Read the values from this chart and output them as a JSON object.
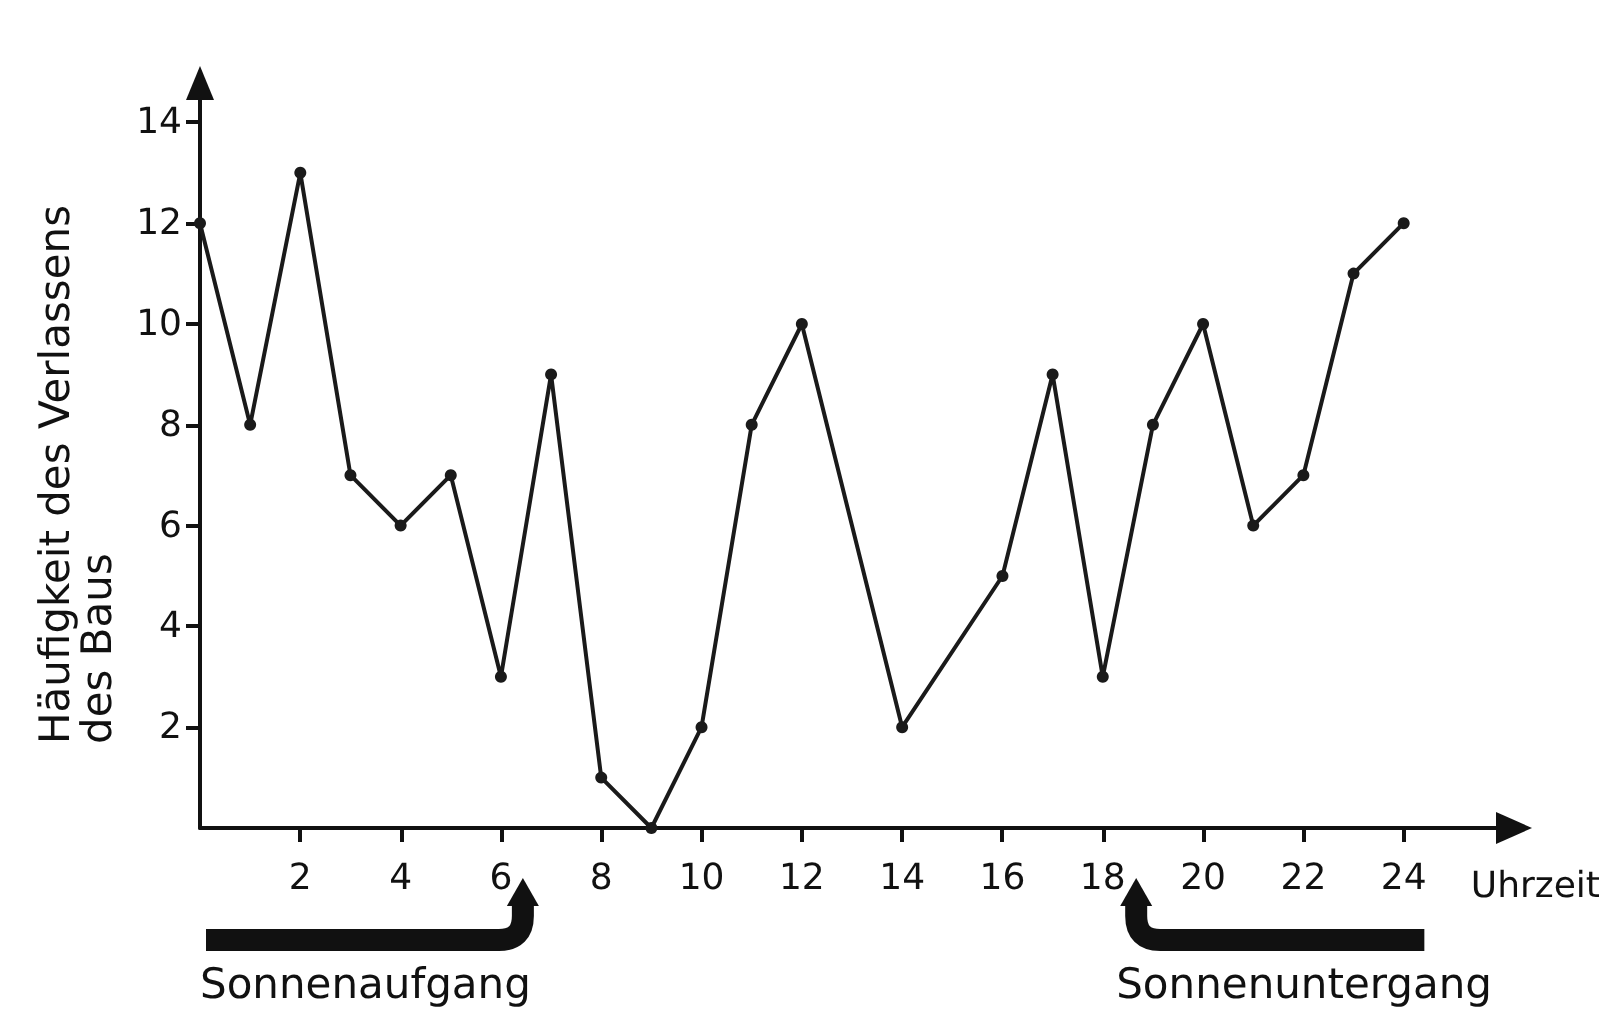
{
  "chart_data": {
    "type": "line",
    "xlabel": "Uhrzeit",
    "ylabel": "Häufigkeit des Verlassens des Baus",
    "x": [
      0,
      1,
      2,
      3,
      4,
      5,
      6,
      7,
      8,
      9,
      10,
      11,
      12,
      14,
      16,
      17,
      18,
      19,
      20,
      21,
      22,
      23,
      24
    ],
    "series": [
      {
        "color": "#1a1a1a",
        "values": [
          12,
          8,
          13,
          7,
          6,
          7,
          3,
          9,
          1,
          0,
          2,
          8,
          10,
          2,
          5,
          9,
          3,
          8,
          10,
          6,
          7,
          11,
          12
        ]
      }
    ],
    "xlim": [
      0,
      26
    ],
    "xticks": [
      2,
      4,
      6,
      8,
      10,
      12,
      14,
      16,
      18,
      20,
      22,
      24
    ],
    "ylim": [
      0,
      15
    ],
    "yticks": [
      2,
      4,
      6,
      8,
      10,
      12,
      14
    ],
    "marker": "circle",
    "line_style": "solid",
    "annotations": [
      "Sonnenaufgang",
      "Sonnenuntergang"
    ]
  }
}
